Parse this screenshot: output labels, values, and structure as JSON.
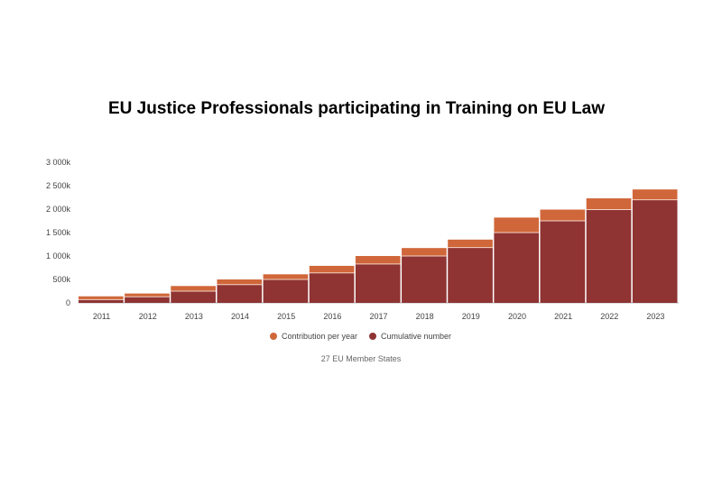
{
  "chart_data": {
    "type": "bar",
    "stacked": true,
    "title": "EU Justice Professionals participating in Training on EU Law",
    "categories": [
      "2011",
      "2012",
      "2013",
      "2014",
      "2015",
      "2016",
      "2017",
      "2018",
      "2019",
      "2020",
      "2021",
      "2022",
      "2023"
    ],
    "series": [
      {
        "name": "Cumulative number",
        "color": "#8f3333",
        "values": [
          70,
          130,
          250,
          390,
          500,
          640,
          830,
          1000,
          1180,
          1500,
          1750,
          1990,
          2200
        ]
      },
      {
        "name": "Contribution per year",
        "color": "#d0673a",
        "values": [
          70,
          70,
          110,
          110,
          110,
          150,
          170,
          170,
          170,
          320,
          240,
          240,
          220
        ]
      }
    ],
    "y_ticks": [
      "0",
      "500k",
      "1 000k",
      "1 500k",
      "2 000k",
      "2 500k",
      "3 000k"
    ],
    "ylim": [
      0,
      3000
    ],
    "legend_position": "bottom",
    "footnote": "27 EU Member States"
  }
}
